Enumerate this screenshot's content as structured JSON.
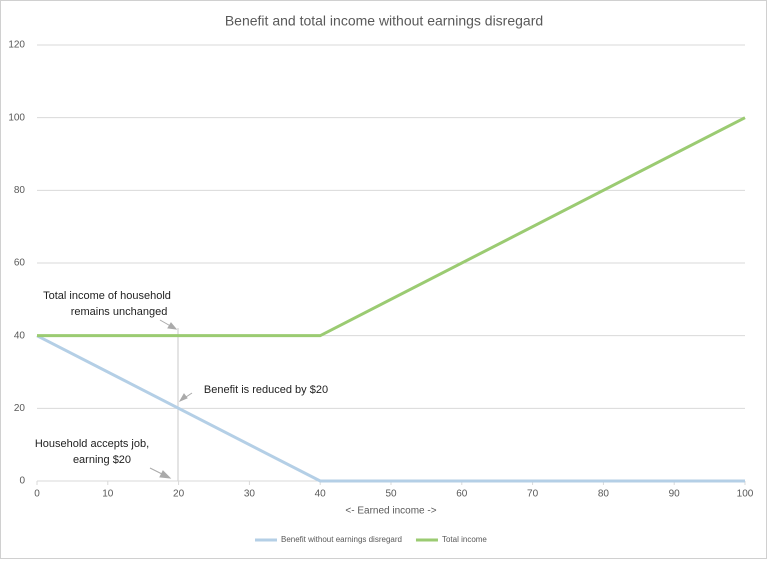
{
  "chart_data": {
    "type": "line",
    "title": "Benefit and total income without earnings disregard",
    "x_label": "<- Earned income ->",
    "x": [
      0,
      40,
      100
    ],
    "series": [
      {
        "name": "Benefit without earnings disregard",
        "color": "#b4cfe6",
        "values": [
          40,
          0,
          0
        ]
      },
      {
        "name": "Total income",
        "color": "#9bcb72",
        "values": [
          40,
          40,
          100
        ]
      }
    ],
    "xlim": [
      0,
      100
    ],
    "xticks": [
      0,
      10,
      20,
      30,
      40,
      50,
      60,
      70,
      80,
      90,
      100
    ],
    "ylim": [
      0,
      120
    ],
    "yticks": [
      0,
      20,
      40,
      60,
      80,
      100,
      120
    ],
    "grid": true,
    "legend": "bottom",
    "annotations": [
      {
        "lines": [
          "Total income of household",
          "remains unchanged"
        ]
      },
      {
        "lines": [
          "Benefit is reduced by $20"
        ]
      },
      {
        "lines": [
          "Household accepts job,",
          "earning $20"
        ]
      }
    ]
  }
}
